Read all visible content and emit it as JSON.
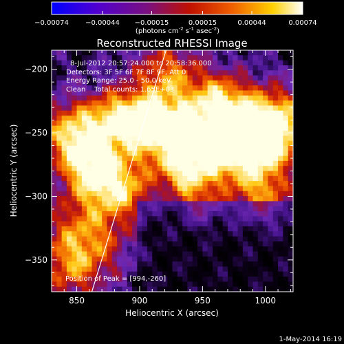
{
  "chart_data": {
    "type": "heatmap",
    "title": "Reconstructed RHESSI Image",
    "xlabel": "Heliocentric X (arcsec)",
    "ylabel": "Heliocentric Y (arcsec)",
    "xlim": [
      830,
      1022
    ],
    "ylim": [
      -375,
      -185
    ],
    "x_ticks": [
      850,
      900,
      950,
      1000
    ],
    "y_ticks": [
      -200,
      -250,
      -300,
      -350
    ],
    "x_tick_labels": [
      "850",
      "900",
      "950",
      "1000"
    ],
    "y_tick_labels": [
      "-200",
      "-250",
      "-300",
      "-350"
    ],
    "colorbar": {
      "ticks": [
        -0.00074,
        -0.00044,
        -0.00015,
        0.00015,
        0.00044,
        0.00074
      ],
      "tick_labels": [
        "-0.00074",
        "-0.00044",
        "-0.00015",
        "0.00015",
        "0.00044",
        "0.00074"
      ],
      "label": "(photons cm",
      "label_sup1": "-2",
      "label_mid": " s",
      "label_sup2": "-1",
      "label_end": " asec",
      "label_sup3": "-2",
      "label_close": ")",
      "colors": [
        "#0000ff",
        "#6000c0",
        "#8a1060",
        "#c02000",
        "#f07000",
        "#ffd000",
        "#ffffff"
      ]
    },
    "annotations": [
      "8-Jul-2012 20:57:24.000 to 20:58:36.000",
      "Detectors: 3F 5F 6F 7F 8F 9F, Att 0",
      "Energy Range: 25.0 - 50.0 keV",
      "Clean    Total counts: 1.65E+03"
    ],
    "peak_label": "Position of Peak = [994,-260]",
    "peak": [
      994,
      -260
    ],
    "limb_line": [
      [
        862,
        -375
      ],
      [
        921,
        -185
      ]
    ]
  },
  "footer": {
    "date": "1-May-2014 16:19"
  }
}
